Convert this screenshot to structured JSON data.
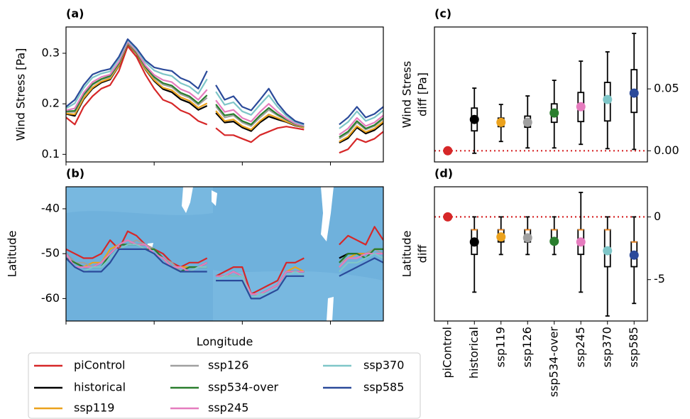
{
  "chart_data": [
    {
      "type": "line",
      "title": "(a)",
      "ylabel": "Wind Stress [Pa]",
      "x": [
        0,
        10,
        20,
        30,
        40,
        50,
        60,
        70,
        80,
        90,
        100,
        110,
        120,
        130,
        140,
        150,
        160,
        165,
        170,
        180,
        190,
        200,
        210,
        220,
        230,
        240,
        250,
        260,
        270,
        290,
        310,
        320,
        330,
        340,
        350,
        360
      ],
      "xlim": [
        0,
        360
      ],
      "xticks": [
        0,
        100,
        200,
        300
      ],
      "ylim": [
        0.085,
        0.352
      ],
      "yticks": [
        0.1,
        0.2,
        0.3
      ],
      "series": [
        {
          "name": "piControl",
          "color": "#d62728",
          "values": [
            0.173,
            0.159,
            0.194,
            0.215,
            0.23,
            0.237,
            0.265,
            0.314,
            0.293,
            0.258,
            0.23,
            0.208,
            0.201,
            0.187,
            0.18,
            0.166,
            0.159,
            null,
            0.152,
            0.138,
            0.138,
            0.131,
            0.124,
            0.138,
            0.145,
            0.152,
            0.155,
            0.152,
            0.149,
            null,
            0.103,
            0.11,
            0.131,
            0.124,
            0.131,
            0.145
          ]
        },
        {
          "name": "historical",
          "color": "#000000",
          "values": [
            0.18,
            0.176,
            0.209,
            0.23,
            0.242,
            0.248,
            0.275,
            0.319,
            0.299,
            0.268,
            0.245,
            0.229,
            0.223,
            0.209,
            0.202,
            0.188,
            0.196,
            null,
            0.182,
            0.163,
            0.165,
            0.153,
            0.146,
            0.163,
            0.175,
            0.169,
            0.164,
            0.157,
            0.153,
            null,
            0.123,
            0.132,
            0.153,
            0.141,
            0.148,
            0.162
          ]
        },
        {
          "name": "ssp119",
          "color": "#eba21d",
          "values": [
            0.181,
            0.179,
            0.211,
            0.232,
            0.244,
            0.25,
            0.276,
            0.32,
            0.3,
            0.269,
            0.247,
            0.232,
            0.227,
            0.213,
            0.206,
            0.192,
            0.201,
            null,
            0.186,
            0.166,
            0.169,
            0.156,
            0.149,
            0.166,
            0.179,
            0.172,
            0.165,
            0.158,
            0.153,
            null,
            0.125,
            0.135,
            0.156,
            0.144,
            0.151,
            0.165
          ]
        },
        {
          "name": "ssp126",
          "color": "#a0a0a0",
          "values": [
            0.184,
            0.184,
            0.216,
            0.237,
            0.248,
            0.253,
            0.279,
            0.321,
            0.302,
            0.272,
            0.251,
            0.238,
            0.233,
            0.219,
            0.212,
            0.198,
            0.212,
            null,
            0.195,
            0.173,
            0.177,
            0.163,
            0.156,
            0.173,
            0.188,
            0.177,
            0.168,
            0.159,
            0.155,
            null,
            0.131,
            0.142,
            0.163,
            0.149,
            0.156,
            0.17
          ]
        },
        {
          "name": "ssp534-over",
          "color": "#2a7e2e",
          "values": [
            0.185,
            0.186,
            0.218,
            0.239,
            0.249,
            0.255,
            0.28,
            0.322,
            0.302,
            0.273,
            0.253,
            0.241,
            0.236,
            0.222,
            0.215,
            0.201,
            0.217,
            null,
            0.199,
            0.177,
            0.18,
            0.166,
            0.159,
            0.177,
            0.192,
            0.179,
            0.169,
            0.16,
            0.155,
            null,
            0.134,
            0.145,
            0.166,
            0.151,
            0.158,
            0.172
          ]
        },
        {
          "name": "ssp245",
          "color": "#e57cbe",
          "values": [
            0.187,
            0.191,
            0.222,
            0.243,
            0.253,
            0.258,
            0.283,
            0.323,
            0.304,
            0.276,
            0.257,
            0.247,
            0.243,
            0.229,
            0.222,
            0.208,
            0.228,
            null,
            0.207,
            0.184,
            0.188,
            0.172,
            0.165,
            0.184,
            0.2,
            0.184,
            0.171,
            0.161,
            0.156,
            null,
            0.139,
            0.151,
            0.172,
            0.156,
            0.163,
            0.177
          ]
        },
        {
          "name": "ssp370",
          "color": "#7fc6c8",
          "values": [
            0.191,
            0.201,
            0.231,
            0.252,
            0.26,
            0.264,
            0.289,
            0.326,
            0.307,
            0.282,
            0.266,
            0.259,
            0.255,
            0.241,
            0.234,
            0.22,
            0.249,
            null,
            0.224,
            0.198,
            0.203,
            0.185,
            0.178,
            0.198,
            0.217,
            0.194,
            0.176,
            0.164,
            0.158,
            null,
            0.151,
            0.164,
            0.185,
            0.166,
            0.173,
            0.187
          ]
        },
        {
          "name": "ssp585",
          "color": "#2b4a9a",
          "values": [
            0.194,
            0.208,
            0.237,
            0.258,
            0.265,
            0.269,
            0.293,
            0.328,
            0.31,
            0.286,
            0.272,
            0.268,
            0.265,
            0.251,
            0.244,
            0.23,
            0.265,
            null,
            0.237,
            0.208,
            0.215,
            0.194,
            0.187,
            0.208,
            0.23,
            0.201,
            0.18,
            0.166,
            0.16,
            null,
            0.159,
            0.173,
            0.194,
            0.173,
            0.18,
            0.194
          ]
        }
      ]
    },
    {
      "type": "line",
      "title": "(b)",
      "ylabel": "Latitude",
      "xlabel": "Longitude",
      "x": [
        0,
        10,
        20,
        30,
        40,
        50,
        60,
        70,
        80,
        90,
        100,
        110,
        120,
        130,
        140,
        150,
        160,
        165,
        170,
        180,
        190,
        200,
        210,
        220,
        230,
        240,
        250,
        260,
        270,
        290,
        310,
        320,
        330,
        340,
        350,
        360
      ],
      "xlim": [
        0,
        360
      ],
      "xticks": [
        0,
        100,
        200,
        300
      ],
      "ylim": [
        -65,
        -35.1
      ],
      "yticks": [
        -40,
        -50,
        -60
      ],
      "series": [
        {
          "name": "piControl",
          "color": "#d62728",
          "values": [
            -49,
            -50,
            -51,
            -51,
            -50,
            -47,
            -49,
            -45,
            -46,
            -48,
            -49,
            -50,
            -52,
            -53,
            -52,
            -52,
            -51,
            null,
            -55,
            -54,
            -53,
            -53,
            -59,
            -58,
            -57,
            -56,
            -52,
            -52,
            -51,
            null,
            -48,
            -46,
            -47,
            -48,
            -44,
            -47
          ]
        },
        {
          "name": "historical",
          "color": "#000000",
          "values": [
            -50,
            -52,
            -53,
            -53,
            -52,
            -50,
            -48,
            -48,
            -48,
            -48,
            -49,
            -51,
            -53,
            -54,
            -53,
            -53,
            -52,
            null,
            -55,
            -55,
            -54,
            -55,
            -59,
            -59,
            -58,
            -57,
            -54,
            -54,
            -54,
            null,
            -51,
            -50,
            -50,
            -50,
            -49,
            -49
          ]
        },
        {
          "name": "ssp119",
          "color": "#eba21d",
          "values": [
            -50,
            -52,
            -53,
            -52,
            -52,
            -49,
            -48,
            -47,
            -48,
            -48,
            -49,
            -51,
            -53,
            -53,
            -53,
            -53,
            -52,
            null,
            -55,
            -55,
            -54,
            -55,
            -59,
            -59,
            -58,
            -57,
            -54,
            -53,
            -54,
            null,
            -53,
            -51,
            -50,
            -50,
            -49,
            -49
          ]
        },
        {
          "name": "ssp126",
          "color": "#a0a0a0",
          "values": [
            -50,
            -52,
            -52,
            -53,
            -52,
            -50,
            -48,
            -48,
            -47,
            -48,
            -49,
            -51,
            -52,
            -54,
            -53,
            -53,
            -53,
            null,
            -55,
            -55,
            -55,
            -55,
            -59,
            -59,
            -58,
            -57,
            -54,
            -54,
            -54,
            null,
            -52,
            -51,
            -51,
            -50,
            -49,
            -50
          ]
        },
        {
          "name": "ssp534-over",
          "color": "#2a7e2e",
          "values": [
            -51,
            -52,
            -53,
            -53,
            -53,
            -50,
            -48,
            -48,
            -48,
            -49,
            -49,
            -51,
            -53,
            -54,
            -53,
            -53,
            -53,
            null,
            -55,
            -55,
            -55,
            -55,
            -59,
            -59,
            -58,
            -57,
            -54,
            -54,
            -54,
            null,
            -52,
            -50,
            -50,
            -51,
            -49,
            -49
          ]
        },
        {
          "name": "ssp245",
          "color": "#e57cbe",
          "values": [
            -50,
            -53,
            -53,
            -53,
            -52,
            -50,
            -48,
            -47,
            -48,
            -48,
            -50,
            -51,
            -53,
            -53,
            -54,
            -53,
            -52,
            null,
            -55,
            -55,
            -54,
            -55,
            -59,
            -59,
            -58,
            -57,
            -54,
            -54,
            -54,
            null,
            -53,
            -51,
            -51,
            -50,
            -50,
            -50
          ]
        },
        {
          "name": "ssp370",
          "color": "#7fc6c8",
          "values": [
            -51,
            -53,
            -54,
            -53,
            -53,
            -51,
            -49,
            -48,
            -48,
            -49,
            -50,
            -52,
            -53,
            -54,
            -54,
            -53,
            -53,
            null,
            -56,
            -55,
            -55,
            -55,
            -60,
            -59,
            -59,
            -58,
            -55,
            -54,
            -55,
            null,
            -54,
            -52,
            -52,
            -51,
            -50,
            -51
          ]
        },
        {
          "name": "ssp585",
          "color": "#2b4a9a",
          "values": [
            -51,
            -53,
            -54,
            -54,
            -54,
            -52,
            -49,
            -49,
            -49,
            -49,
            -50,
            -52,
            -53,
            -54,
            -54,
            -54,
            -54,
            null,
            -56,
            -56,
            -56,
            -56,
            -60,
            -60,
            -59,
            -58,
            -55,
            -55,
            -55,
            null,
            -55,
            -54,
            -53,
            -52,
            -51,
            -52
          ]
        }
      ]
    },
    {
      "type": "box",
      "title": "(c)",
      "ylabel": [
        "Wind Stress",
        "diff [Pa]"
      ],
      "ylim": [
        -0.009,
        0.1
      ],
      "yticks": [
        {
          "value": 0,
          "label": "0.00"
        },
        {
          "value": 0.05,
          "label": "0.05"
        }
      ],
      "yaxis_side": "right",
      "reference_line": 0,
      "colors": [
        "#d62728",
        "#000000",
        "#eba21d",
        "#a0a0a0",
        "#2a7e2e",
        "#e57cbe",
        "#7fc6c8",
        "#2b4a9a"
      ],
      "values": [
        0,
        0.0253,
        0.023,
        0.023,
        0.0305,
        0.0356,
        0.0414,
        0.0466
      ],
      "boxes": [
        null,
        {
          "whislo": -0.002,
          "q1": 0.0161,
          "med": 0.025,
          "q3": 0.0345,
          "whishi": 0.0506
        },
        {
          "whislo": 0.0075,
          "q1": 0.0195,
          "med": 0.023,
          "q3": 0.0264,
          "whishi": 0.0374
        },
        {
          "whislo": 0.0023,
          "q1": 0.019,
          "med": 0.023,
          "q3": 0.028,
          "whishi": 0.0443
        },
        {
          "whislo": 0.0023,
          "q1": 0.023,
          "med": 0.0305,
          "q3": 0.0379,
          "whishi": 0.0569
        },
        {
          "whislo": 0.0052,
          "q1": 0.0236,
          "med": 0.0356,
          "q3": 0.0471,
          "whishi": 0.0724
        },
        {
          "whislo": 0.0017,
          "q1": 0.0241,
          "med": 0.0414,
          "q3": 0.0552,
          "whishi": 0.0799
        },
        {
          "whislo": 0.0011,
          "q1": 0.031,
          "med": 0.0466,
          "q3": 0.0655,
          "whishi": 0.0948
        }
      ]
    },
    {
      "type": "box",
      "title": "(d)",
      "ylabel": [
        "Latitude",
        "diff"
      ],
      "categories": [
        "piControl",
        "historical",
        "ssp119",
        "ssp126",
        "ssp534-over",
        "ssp245",
        "ssp370",
        "ssp585"
      ],
      "ylim": [
        -8.3,
        2.4
      ],
      "yticks": [
        0,
        -5
      ],
      "yaxis_side": "right",
      "reference_line": 0,
      "colors": [
        "#d62728",
        "#000000",
        "#eba21d",
        "#a0a0a0",
        "#2a7e2e",
        "#e57cbe",
        "#7fc6c8",
        "#2b4a9a"
      ],
      "values": [
        0,
        -2.0,
        -1.6,
        -1.67,
        -1.95,
        -2.0,
        -2.7,
        -3.05
      ],
      "boxes": [
        null,
        {
          "whislo": -6,
          "q1": -2.99,
          "med": -1.03,
          "q3": -1.03,
          "whishi": 0
        },
        {
          "whislo": -3,
          "q1": -2.0,
          "med": -1.03,
          "q3": -1.03,
          "whishi": 0
        },
        {
          "whislo": -3,
          "q1": -2.0,
          "med": -1.03,
          "q3": -1.03,
          "whishi": 0
        },
        {
          "whislo": -3,
          "q1": -2.0,
          "med": -1.03,
          "q3": -1.03,
          "whishi": 0
        },
        {
          "whislo": -6,
          "q1": -2.99,
          "med": -1.03,
          "q3": -1.03,
          "whishi": 1.95
        },
        {
          "whislo": -7.9,
          "q1": -3.97,
          "med": -1.03,
          "q3": -1.03,
          "whishi": 0
        },
        {
          "whislo": -6.9,
          "q1": -3.97,
          "med": -2.0,
          "q3": -2.0,
          "whishi": 0
        }
      ]
    }
  ]
}
